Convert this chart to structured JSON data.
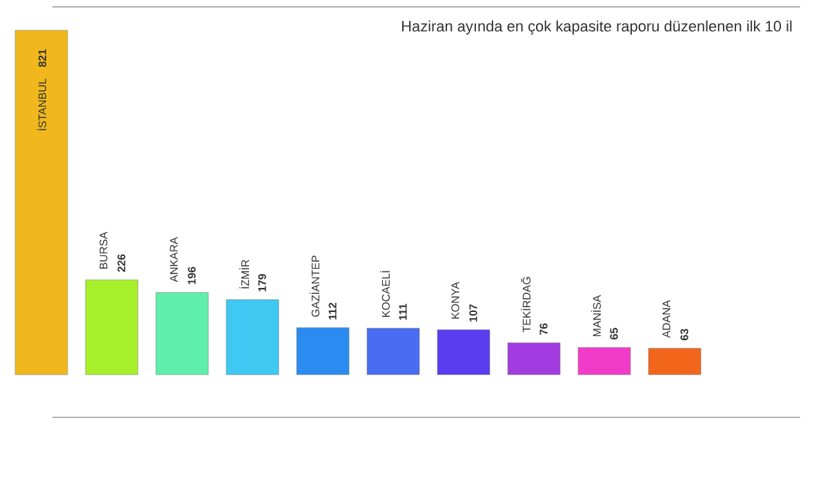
{
  "chart_data": {
    "type": "bar",
    "title": "Haziran ayında en çok kapasite raporu düzenlenen ilk 10 il",
    "categories": [
      "İSTANBUL",
      "BURSA",
      "ANKARA",
      "İZMİR",
      "GAZİANTEP",
      "KOCAELİ",
      "KONYA",
      "TEKİRDAĞ",
      "MANİSA",
      "ADANA"
    ],
    "values": [
      821,
      226,
      196,
      179,
      112,
      111,
      107,
      76,
      65,
      63
    ],
    "colors": [
      "#f0b81c",
      "#a8ef2c",
      "#60efaa",
      "#3ec8f2",
      "#2a8cf0",
      "#4a6cf2",
      "#5a3cf0",
      "#a23ce0",
      "#f03cc8",
      "#f2661c"
    ],
    "value_labels": [
      "821",
      "226",
      "196",
      "179",
      "112",
      "111",
      "107",
      "76",
      "65",
      "63"
    ]
  }
}
